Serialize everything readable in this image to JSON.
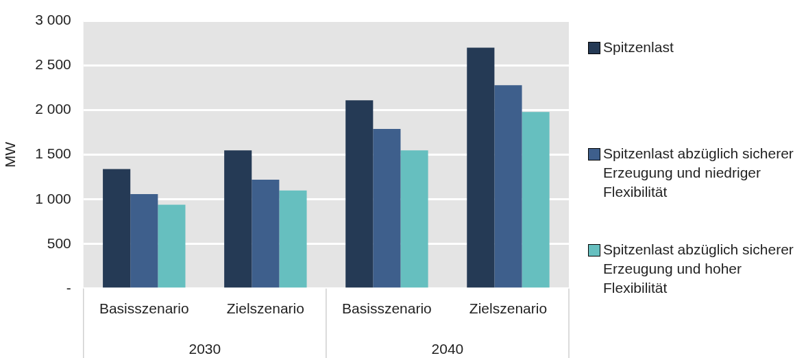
{
  "chart_data": {
    "type": "bar",
    "ylabel": "MW",
    "categories": [
      "Basisszenario",
      "Zielszenario",
      "Basisszenario",
      "Zielszenario"
    ],
    "annotations": [
      "2030",
      "2040"
    ],
    "series": [
      {
        "name": "Spitzenlast",
        "color": "#253a55",
        "values": [
          1340,
          1550,
          2110,
          2700
        ]
      },
      {
        "name": "Spitzenlast abzüglich sicherer Erzeugung und niedriger Flexibilität",
        "color": "#3e5f8c",
        "values": [
          1060,
          1220,
          1790,
          2280
        ]
      },
      {
        "name": "Spitzenlast abzüglich sicherer Erzeugung und hoher Flexibilität",
        "color": "#66bfbf",
        "values": [
          940,
          1100,
          1550,
          1980
        ]
      }
    ],
    "ylim": [
      0,
      3000
    ],
    "yticks": [
      {
        "value": 0,
        "label": "-"
      },
      500,
      {
        "value": 1000,
        "label": "1 000"
      },
      {
        "value": 1500,
        "label": "1 500"
      },
      {
        "value": 2000,
        "label": "2 000"
      },
      {
        "value": 2500,
        "label": "2 500"
      },
      {
        "value": 3000,
        "label": "3 000"
      }
    ],
    "grid": "y",
    "legend": "right"
  }
}
